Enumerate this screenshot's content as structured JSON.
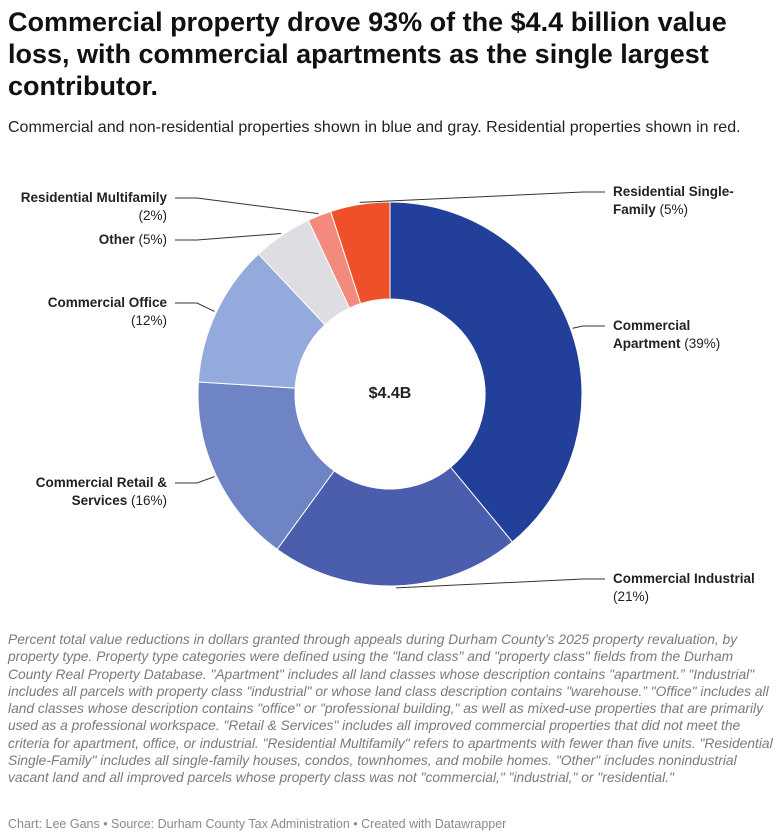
{
  "chart_data": {
    "type": "donut",
    "title": "Commercial property drove 93% of the $4.4 billion value loss, with commercial apartments as the single largest contributor.",
    "subtitle": "Commercial and non-residential properties shown in blue and gray. Residential properties shown in red.",
    "center_label": "$4.4B",
    "categories": [
      "Commercial Apartment",
      "Commercial Industrial",
      "Commercial Retail & Services",
      "Commercial Office",
      "Other",
      "Residential Multifamily",
      "Residential Single-Family"
    ],
    "values": [
      39,
      21,
      16,
      12,
      5,
      2,
      5
    ],
    "value_labels": [
      "(39%)",
      "(21%)",
      "(16%)",
      "(12%)",
      "(5%)",
      "(2%)",
      "(5%)"
    ],
    "colors": [
      "#22409a",
      "#4a5ead",
      "#6f84c4",
      "#94a9dc",
      "#dddde2",
      "#f28b7d",
      "#ef5029"
    ],
    "notes": "Percent total value reductions in dollars granted through appeals during Durham County’s 2025 property revaluation, by property type. Property type categories were defined using the \"land class\" and \"property class\" fields from the Durham County Real Property Database. \"Apartment\" includes all land classes whose description contains \"apartment.” \"Industrial\" includes all parcels with property class \"industrial\" or whose land class description contains \"warehouse.” \"Office\" includes all land classes whose description contains \"office\" or \"professional building,\" as well as mixed-use properties that are primarily used as a professional workspace. \"Retail & Services\" includes all improved commercial properties that did not meet the criteria for apartment, office, or industrial. \"Residential Multifamily\" refers to apartments with fewer than five units. \"Residential Single-Family\" includes all single-family houses, condos, townhomes, and mobile homes. \"Other\" includes nonindustrial vacant land and all improved parcels whose property class was not \"commercial,\" \"industrial,\" or \"residential.\"",
    "footer": "Chart: Lee Gans • Source: Durham County Tax Administration • Created with Datawrapper"
  }
}
